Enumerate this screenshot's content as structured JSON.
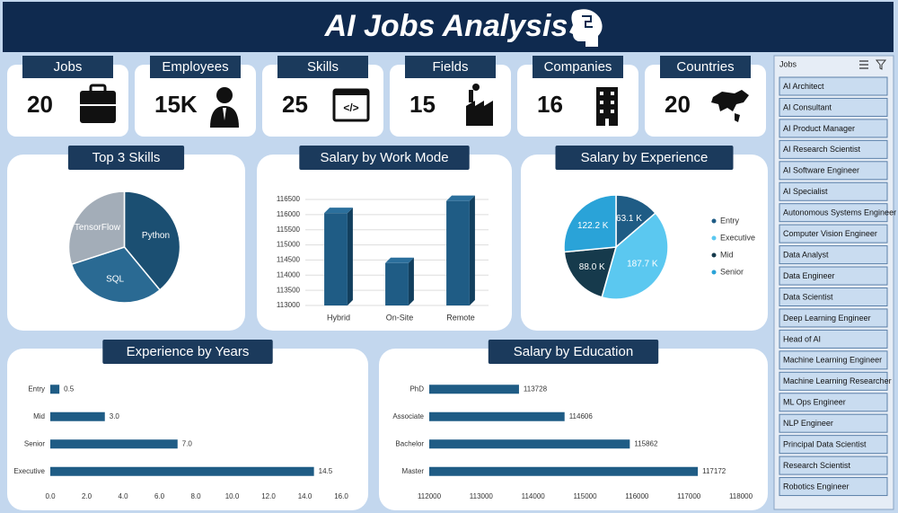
{
  "header": {
    "title": "AI Jobs Analysis"
  },
  "kpis": [
    {
      "label": "Jobs",
      "value": "20"
    },
    {
      "label": "Employees",
      "value": "15K"
    },
    {
      "label": "Skills",
      "value": "25"
    },
    {
      "label": "Fields",
      "value": "15"
    },
    {
      "label": "Companies",
      "value": "16"
    },
    {
      "label": "Countries",
      "value": "20"
    }
  ],
  "slicer": {
    "title": "Jobs",
    "items": [
      "AI Architect",
      "AI Consultant",
      "AI Product Manager",
      "AI Research Scientist",
      "AI Software Engineer",
      "AI Specialist",
      "Autonomous Systems Engineer",
      "Computer Vision Engineer",
      "Data Analyst",
      "Data Engineer",
      "Data Scientist",
      "Deep Learning Engineer",
      "Head of AI",
      "Machine Learning Engineer",
      "Machine Learning Researcher",
      "ML Ops Engineer",
      "NLP Engineer",
      "Principal Data Scientist",
      "Research Scientist",
      "Robotics Engineer"
    ]
  },
  "chart_data": [
    {
      "type": "pie",
      "title": "Top 3 Skills",
      "categories": [
        "Python",
        "SQL",
        "TensorFlow"
      ],
      "values": [
        39,
        31,
        30
      ],
      "colors": [
        "#1b4f72",
        "#2a6a93",
        "#a3adb8"
      ]
    },
    {
      "type": "bar",
      "title": "Salary by Work Mode",
      "categories": [
        "Hybrid",
        "On-Site",
        "Remote"
      ],
      "values": [
        116050,
        114400,
        116450
      ],
      "color": "#1f5c85",
      "ylim": [
        113000,
        116500
      ],
      "yticks": [
        113000,
        113500,
        114000,
        114500,
        115000,
        115500,
        116000,
        116500
      ],
      "grid": true
    },
    {
      "type": "pie",
      "title": "Salary by Experience",
      "categories": [
        "Entry",
        "Executive",
        "Mid",
        "Senior"
      ],
      "values": [
        63.1,
        187.7,
        88.0,
        122.2
      ],
      "value_labels": [
        "63.1 K",
        "187.7 K",
        "88.0 K",
        "122.2 K"
      ],
      "colors": [
        "#1f5c85",
        "#5bc8f0",
        "#163a4c",
        "#2aa3d8"
      ],
      "legend": "right"
    },
    {
      "type": "barh",
      "title": "Experience by Years",
      "categories": [
        "Entry",
        "Mid",
        "Senior",
        "Executive"
      ],
      "values": [
        0.5,
        3.0,
        7.0,
        14.5
      ],
      "value_labels": [
        "0.5",
        "3.0",
        "7.0",
        "14.5"
      ],
      "color": "#1f5c85",
      "xlim": [
        0,
        16
      ],
      "xticks": [
        {
          "value": 0,
          "label": "0.0"
        },
        {
          "value": 2,
          "label": "2.0"
        },
        {
          "value": 4,
          "label": "4.0"
        },
        {
          "value": 6,
          "label": "6.0"
        },
        {
          "value": 8,
          "label": "8.0"
        },
        {
          "value": 10,
          "label": "10.0"
        },
        {
          "value": 12,
          "label": "12.0"
        },
        {
          "value": 14,
          "label": "14.0"
        },
        {
          "value": 16,
          "label": "16.0"
        }
      ]
    },
    {
      "type": "barh",
      "title": "Salary by Education",
      "categories": [
        "PhD",
        "Associate",
        "Bachelor",
        "Master"
      ],
      "values": [
        113728,
        114606,
        115862,
        117172
      ],
      "color": "#1f5c85",
      "xlim": [
        112000,
        118000
      ],
      "xticks": [
        112000,
        113000,
        114000,
        115000,
        116000,
        117000,
        118000
      ]
    }
  ]
}
